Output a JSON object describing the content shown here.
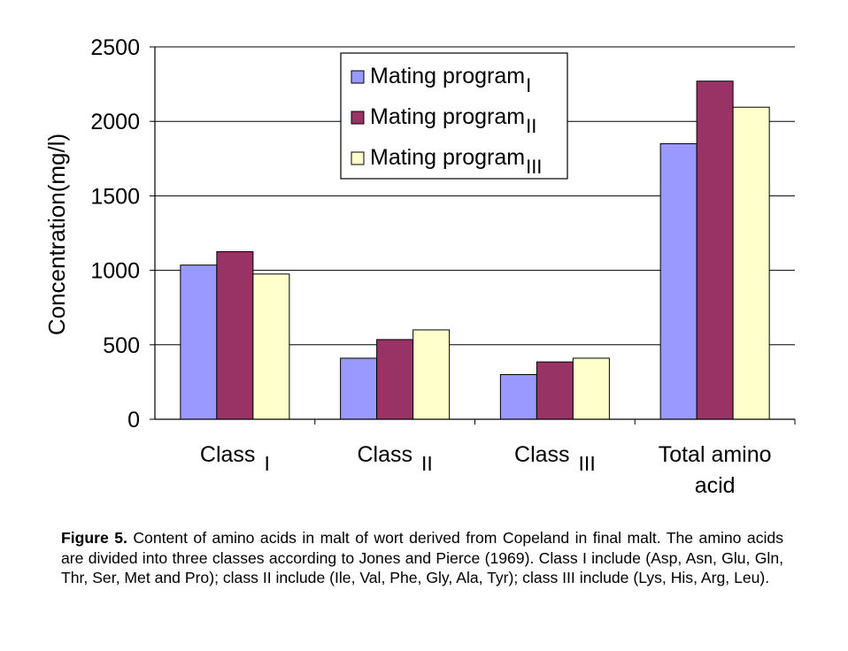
{
  "chart_data": {
    "type": "bar",
    "ylabel": "Concentration(mg/l)",
    "ylim": [
      0,
      2500
    ],
    "yticks": [
      "0",
      "500",
      "1000",
      "1500",
      "2000",
      "2500"
    ],
    "ytick_values": [
      0,
      500,
      1000,
      1500,
      2000,
      2500
    ],
    "grid": true,
    "legend_position": "top-center",
    "categories": [
      {
        "main": "Class",
        "sub": "I"
      },
      {
        "main": "Class",
        "sub": "II"
      },
      {
        "main": "Class",
        "sub": "III"
      },
      {
        "main": "Total amino",
        "line2": "acid",
        "sub": ""
      }
    ],
    "series": [
      {
        "name": "Mating program",
        "sub": "I",
        "color": "#9999ff",
        "values": [
          1035,
          410,
          300,
          1850
        ]
      },
      {
        "name": "Mating program",
        "sub": "II",
        "color": "#993366",
        "values": [
          1125,
          535,
          385,
          2270
        ]
      },
      {
        "name": "Mating program",
        "sub": "III",
        "color": "#ffffcc",
        "values": [
          975,
          600,
          410,
          2095
        ]
      }
    ]
  },
  "caption": {
    "label": "Figure 5.",
    "text": " Content of amino acids in malt of wort derived from Copeland in final malt. The amino acids are divided into three classes according to Jones and Pierce (1969). Class I include (Asp, Asn, Glu, Gln, Thr, Ser, Met and Pro); class II include (Ile, Val, Phe, Gly, Ala, Tyr); class III include (Lys, His, Arg, Leu)."
  }
}
